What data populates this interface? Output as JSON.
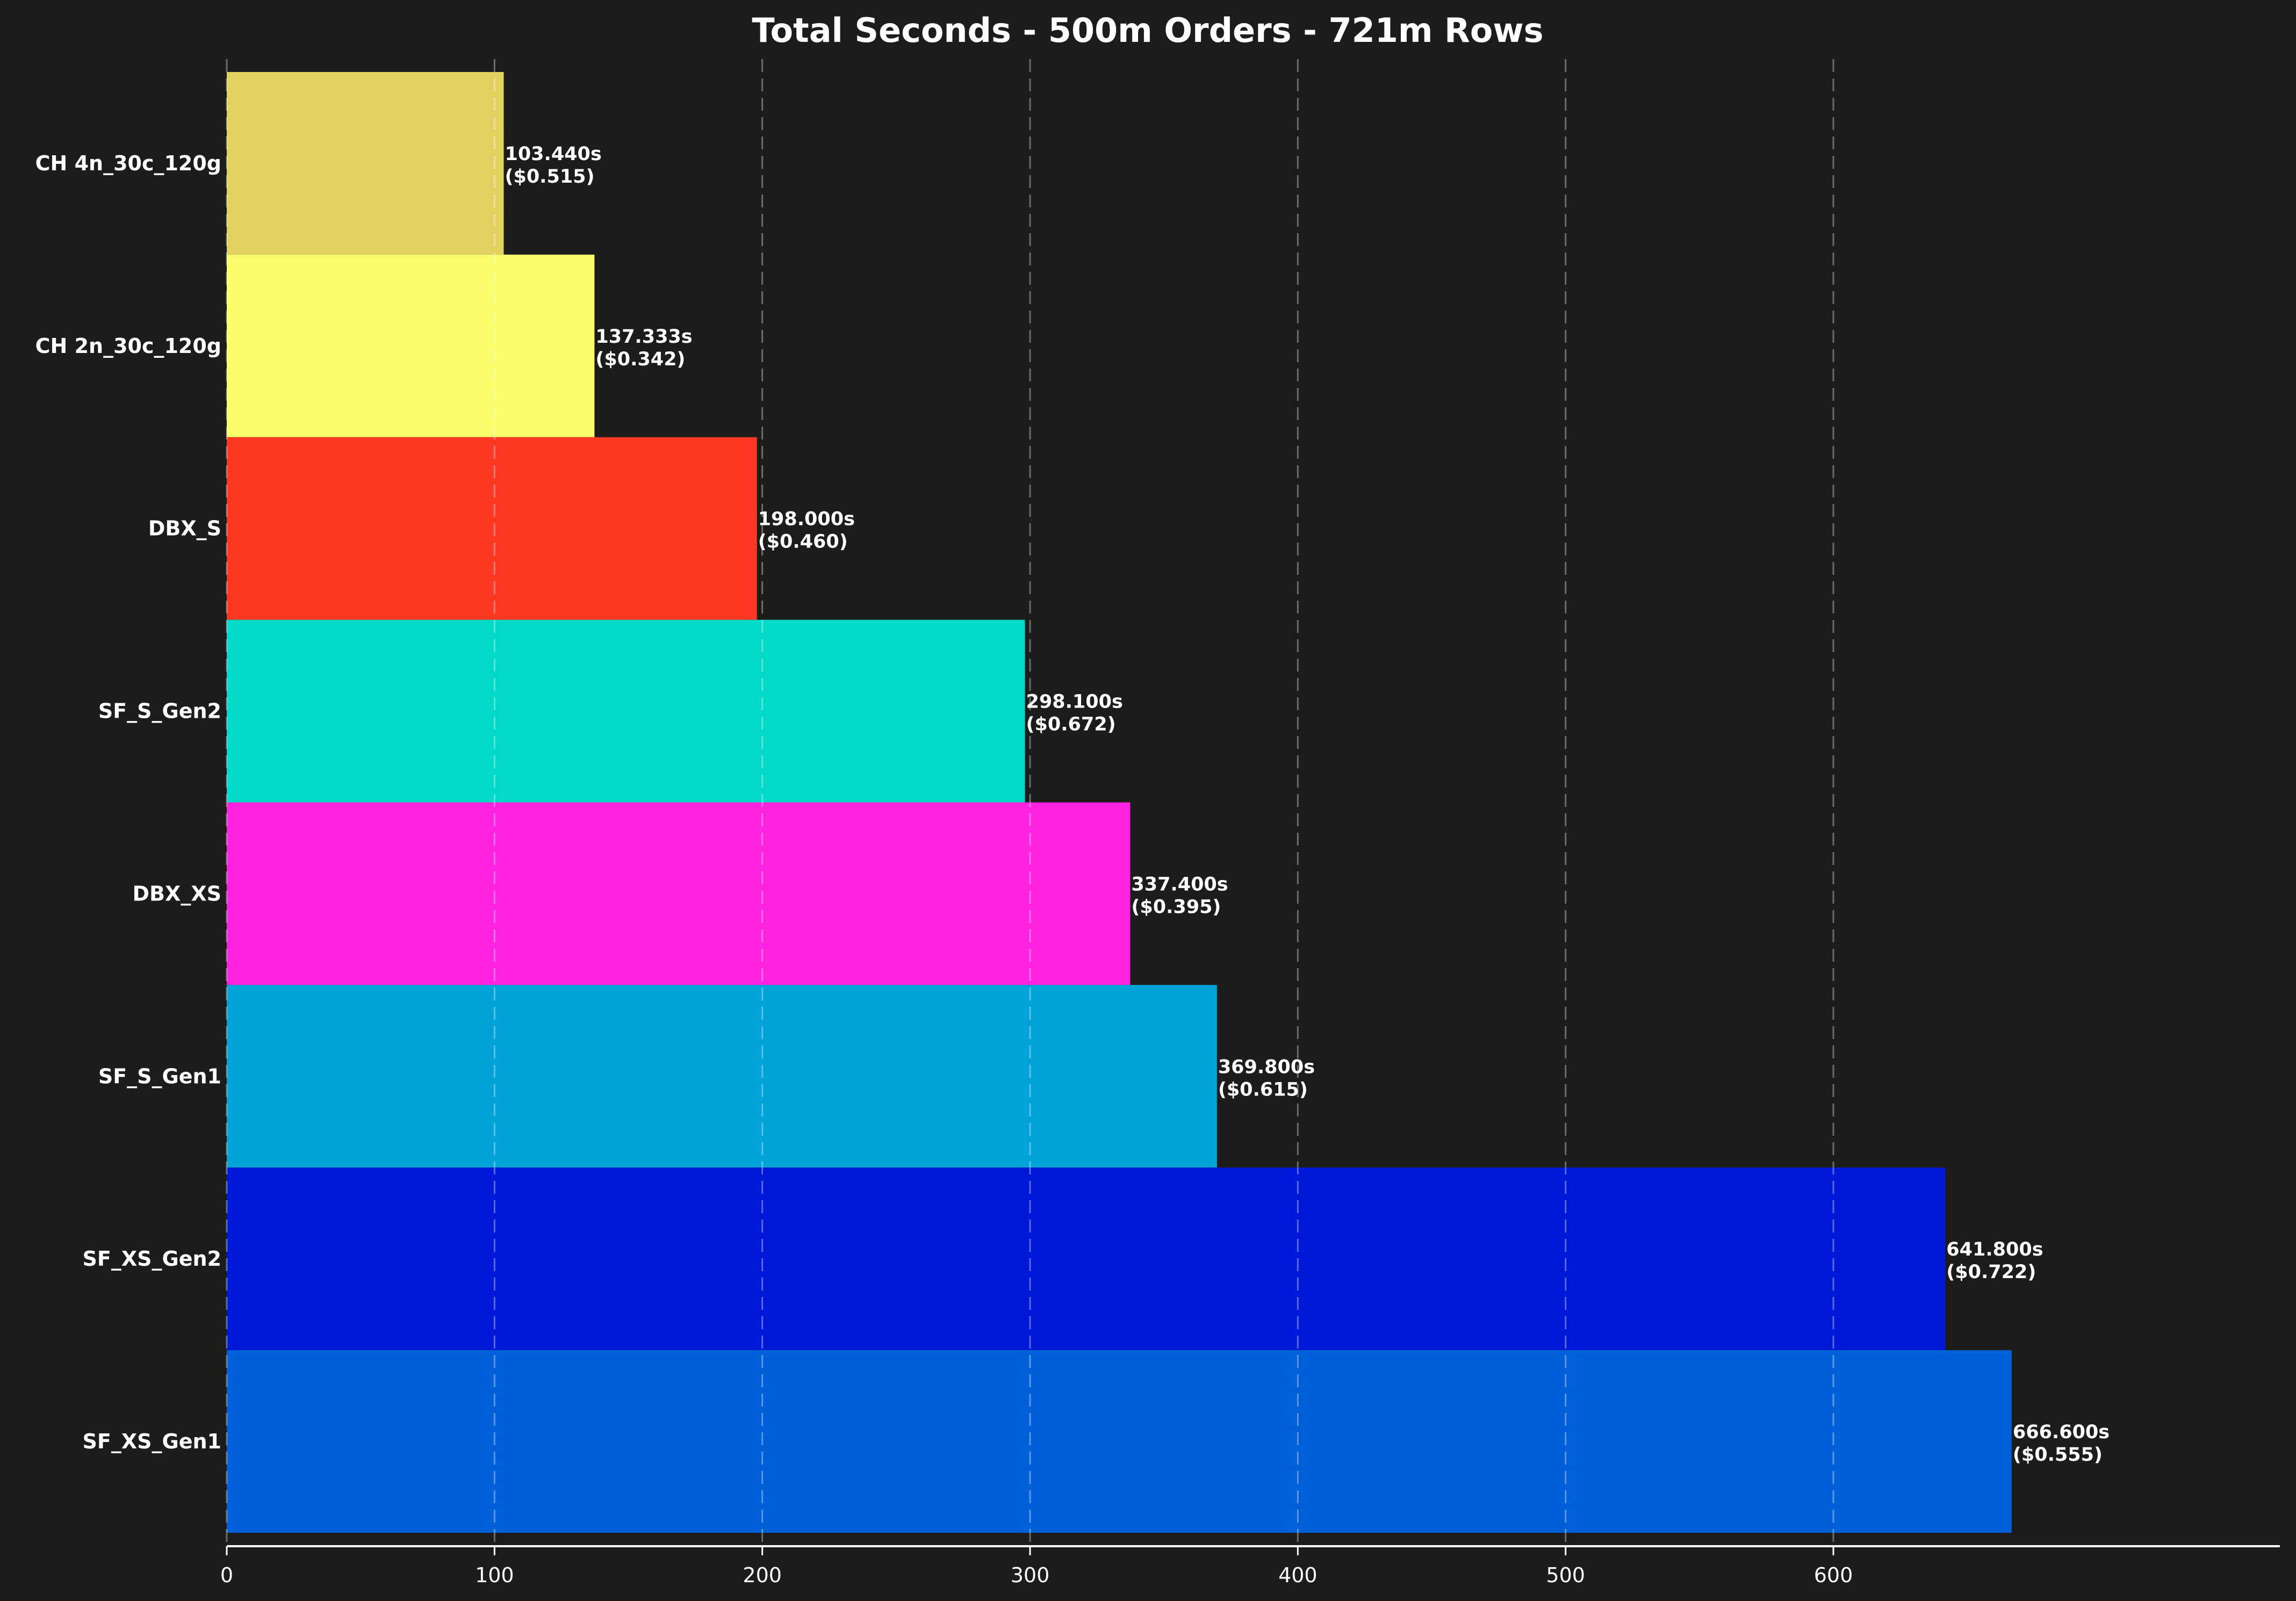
{
  "chart_data": {
    "type": "bar",
    "orientation": "horizontal",
    "title": "Total Seconds - 500m Orders - 721m Rows",
    "xlabel": "",
    "ylabel": "",
    "xlim": [
      0,
      766
    ],
    "xticks": [
      0,
      100,
      200,
      300,
      400,
      500,
      600
    ],
    "grid": "x-dashed",
    "categories": [
      "CH 4n_30c_120g",
      "CH 2n_30c_120g",
      "DBX_S",
      "SF_S_Gen2",
      "DBX_XS",
      "SF_S_Gen1",
      "SF_XS_Gen2",
      "SF_XS_Gen1"
    ],
    "values": [
      103.44,
      137.333,
      198.0,
      298.1,
      337.4,
      369.8,
      641.8,
      666.6
    ],
    "value_labels": [
      "103.440s",
      "137.333s",
      "198.000s",
      "298.100s",
      "337.400s",
      "369.800s",
      "641.800s",
      "666.600s"
    ],
    "cost_labels": [
      "($0.515)",
      "($0.342)",
      "($0.460)",
      "($0.672)",
      "($0.395)",
      "($0.615)",
      "($0.722)",
      "($0.555)"
    ],
    "colors": [
      "#e1d25f",
      "#f8ff6a",
      "#ff3823",
      "#00d8c8",
      "#ff22e0",
      "#00a2d7",
      "#0019d8",
      "#0060d8"
    ]
  }
}
